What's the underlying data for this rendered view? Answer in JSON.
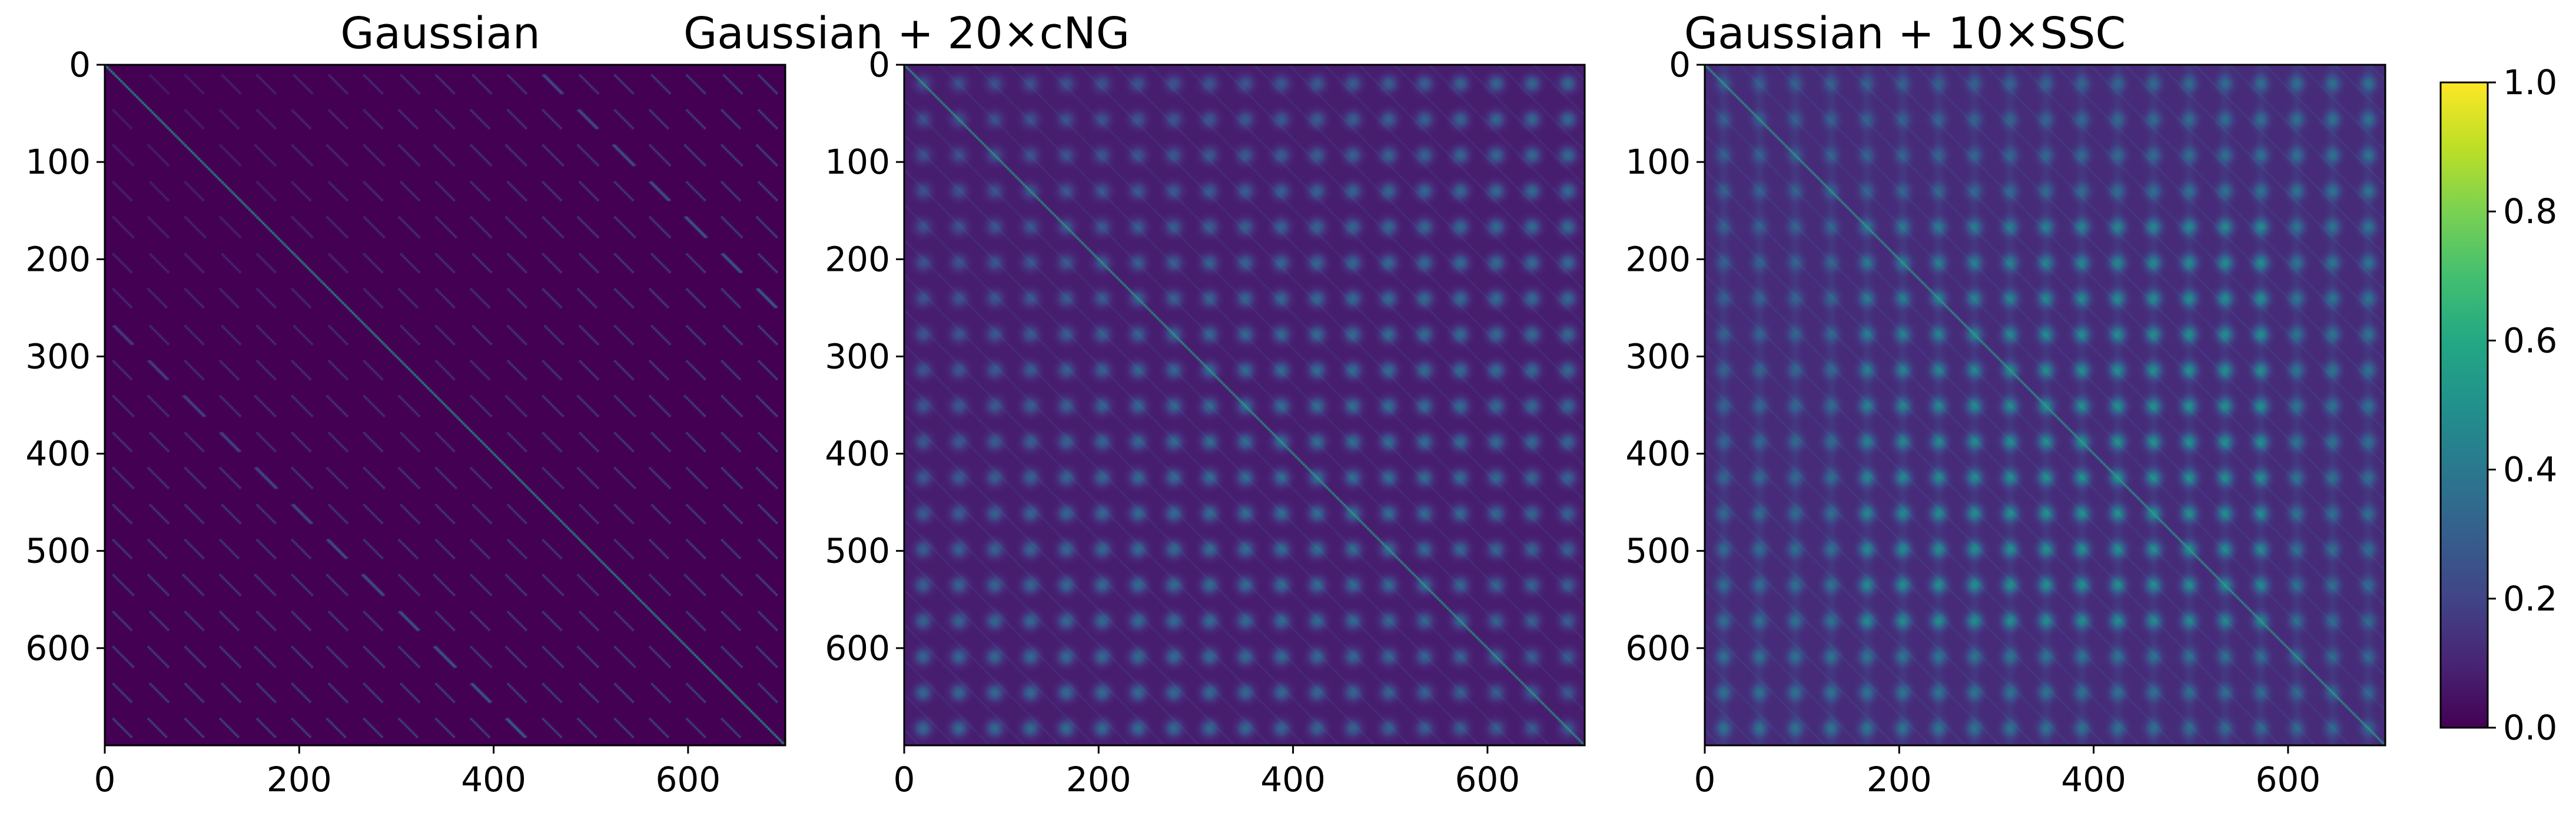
{
  "figure": {
    "colorbar": {
      "ticks": [
        "0.0",
        "0.2",
        "0.4",
        "0.6",
        "0.8",
        "1.0"
      ],
      "range": [
        0,
        1
      ],
      "colormap": "viridis"
    }
  },
  "chart_data": [
    {
      "type": "heatmap",
      "title": "Gaussian",
      "xlabel": "",
      "ylabel": "",
      "matrix_size": 700,
      "xlim": [
        0,
        700
      ],
      "ylim": [
        700,
        0
      ],
      "xticks": [
        "0",
        "200",
        "400",
        "600"
      ],
      "yticks": [
        "0",
        "100",
        "200",
        "300",
        "400",
        "500",
        "600"
      ],
      "colormap": "viridis",
      "value_range": [
        0,
        1
      ],
      "description_values": {
        "background": 0.0,
        "diagonal": 0.6,
        "off_diagonal_bands": 0.3
      },
      "block_count": 19,
      "pattern": "gaussian"
    },
    {
      "type": "heatmap",
      "title": "Gaussian + 20×cNG",
      "xlabel": "",
      "ylabel": "",
      "matrix_size": 700,
      "xlim": [
        0,
        700
      ],
      "ylim": [
        700,
        0
      ],
      "xticks": [
        "0",
        "200",
        "400",
        "600"
      ],
      "yticks": [
        "0",
        "100",
        "200",
        "300",
        "400",
        "500",
        "600"
      ],
      "colormap": "viridis",
      "value_range": [
        0,
        1
      ],
      "description_values": {
        "background": 0.08,
        "diagonal": 0.6,
        "block_peak": 0.35
      },
      "block_count": 19,
      "pattern": "cng"
    },
    {
      "type": "heatmap",
      "title": "Gaussian + 10×SSC",
      "xlabel": "",
      "ylabel": "",
      "matrix_size": 700,
      "xlim": [
        0,
        700
      ],
      "ylim": [
        700,
        0
      ],
      "xticks": [
        "0",
        "200",
        "400",
        "600"
      ],
      "yticks": [
        "0",
        "100",
        "200",
        "300",
        "400",
        "500",
        "600"
      ],
      "colormap": "viridis",
      "value_range": [
        0,
        1
      ],
      "description_values": {
        "background": 0.12,
        "diagonal": 0.6,
        "block_peak": 0.45
      },
      "block_count": 19,
      "pattern": "ssc"
    }
  ]
}
